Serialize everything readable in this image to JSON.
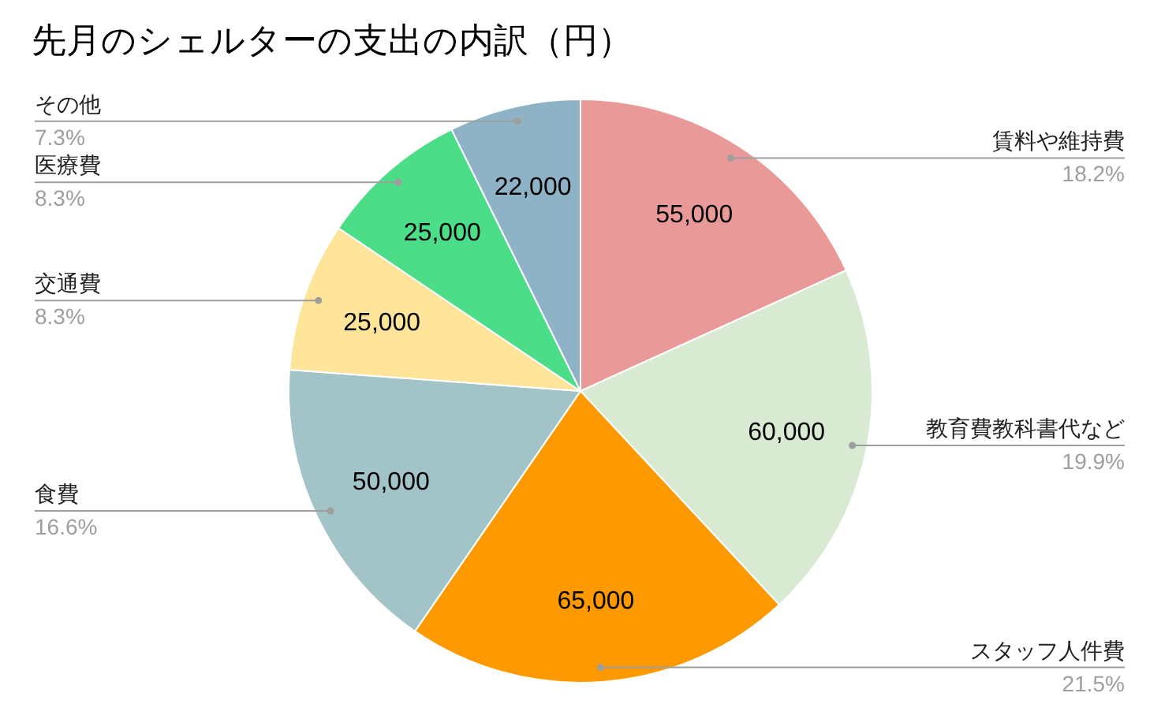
{
  "chart_data": {
    "type": "pie",
    "title": "先月のシェルターの支出の内訳（円）",
    "categories": [
      "賃料や維持費",
      "教育費教科書代など",
      "スタッフ人件費",
      "食費",
      "交通費",
      "医療費",
      "その他"
    ],
    "values": [
      55000,
      60000,
      65000,
      50000,
      25000,
      25000,
      22000
    ],
    "colors": [
      "#ea9999",
      "#d9ead3",
      "#ff9900",
      "#a2c4c9",
      "#ffe599",
      "#4cdd89",
      "#8eb3c6"
    ],
    "value_labels": [
      "55,000",
      "60,000",
      "65,000",
      "50,000",
      "25,000",
      "25,000",
      "22,000"
    ],
    "annotations": [
      "18.2%",
      "19.9%",
      "21.5%",
      "16.6%",
      "8.3%",
      "8.3%",
      "7.3%"
    ]
  }
}
